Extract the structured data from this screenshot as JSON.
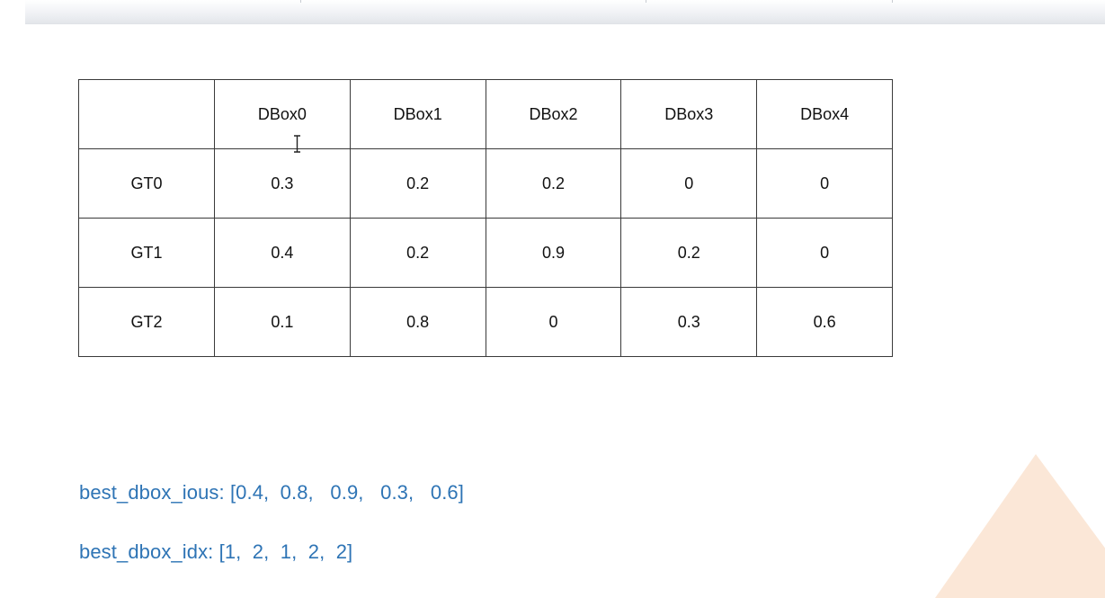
{
  "table": {
    "corner": "",
    "columns": [
      "DBox0",
      "DBox1",
      "DBox2",
      "DBox3",
      "DBox4"
    ],
    "rows": [
      {
        "label": "GT0",
        "values": [
          "0.3",
          "0.2",
          "0.2",
          "0",
          "0"
        ]
      },
      {
        "label": "GT1",
        "values": [
          "0.4",
          "0.2",
          "0.9",
          "0.2",
          "0"
        ]
      },
      {
        "label": "GT2",
        "values": [
          "0.1",
          "0.8",
          "0",
          "0.3",
          "0.6"
        ]
      }
    ]
  },
  "code": {
    "best_dbox_ious": "best_dbox_ious: [0.4,  0.8,   0.9,   0.3,   0.6]",
    "best_dbox_idx": "best_dbox_idx: [1,  2,  1,  2,  2]"
  },
  "colors": {
    "code_text": "#2e74b5",
    "table_border": "#3a3a3a",
    "deco_triangle": "#fbe7d7"
  },
  "icons": {
    "cursor": "text-cursor-icon"
  }
}
